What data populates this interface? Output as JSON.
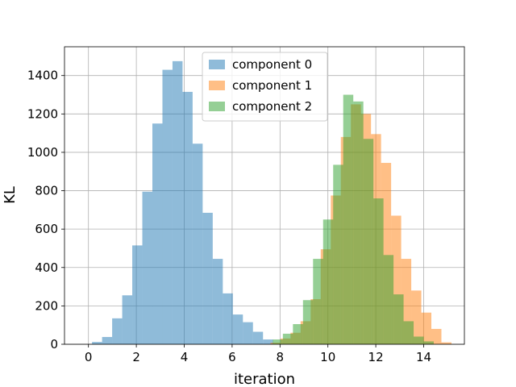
{
  "chart_data": {
    "type": "histogram",
    "xlabel": "iteration",
    "ylabel": "KL",
    "xlim": [
      -1.0,
      15.7
    ],
    "ylim": [
      0,
      1550
    ],
    "xticks": [
      0,
      2,
      4,
      6,
      8,
      10,
      12,
      14
    ],
    "yticks": [
      0,
      200,
      400,
      600,
      800,
      1000,
      1200,
      1400
    ],
    "grid": true,
    "legend_position": "upper-center",
    "bin_width": 0.42,
    "series": [
      {
        "name": "component 0",
        "color": "#1f77b4",
        "alpha": 0.5,
        "x_start": 0.15,
        "values": [
          12,
          38,
          135,
          255,
          515,
          795,
          1150,
          1430,
          1475,
          1315,
          1045,
          685,
          445,
          265,
          155,
          115,
          65,
          25
        ]
      },
      {
        "name": "component 1",
        "color": "#ff7f0e",
        "alpha": 0.5,
        "x_start": 7.6,
        "values": [
          8,
          30,
          60,
          120,
          235,
          495,
          775,
          1080,
          1250,
          1200,
          1095,
          945,
          670,
          445,
          280,
          165,
          80,
          10
        ]
      },
      {
        "name": "component 2",
        "color": "#2ca02c",
        "alpha": 0.5,
        "x_start": 7.7,
        "values": [
          25,
          55,
          105,
          230,
          445,
          650,
          935,
          1300,
          1265,
          1070,
          760,
          465,
          260,
          120,
          40,
          15
        ]
      }
    ]
  }
}
